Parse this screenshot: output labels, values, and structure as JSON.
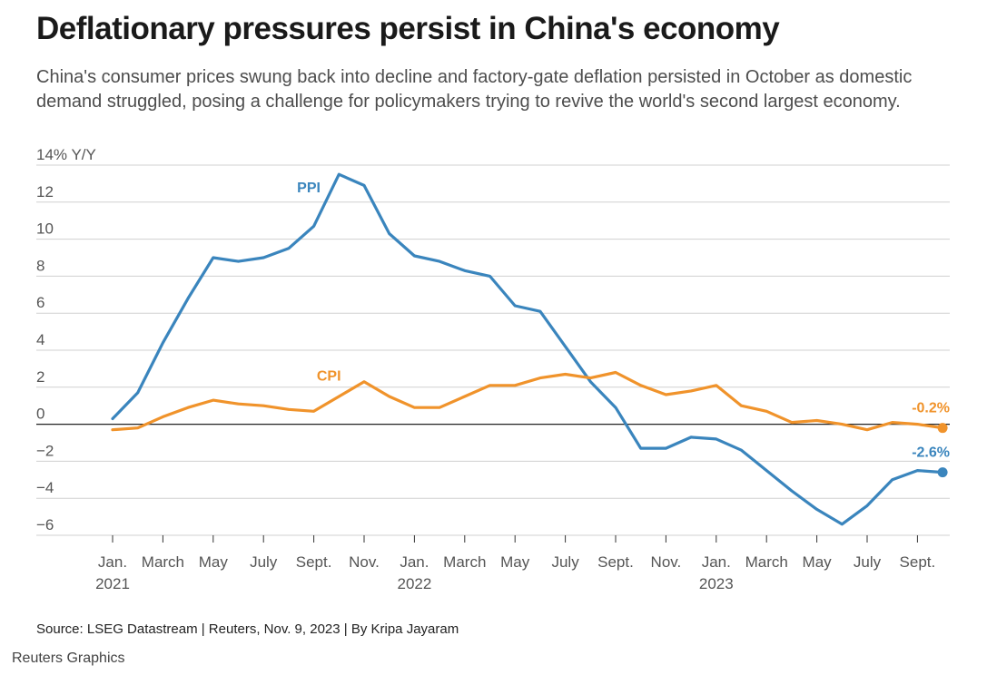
{
  "title": "Deflationary pressures persist in China's economy",
  "subtitle": "China's consumer prices swung back into decline and factory-gate deflation persisted in October as domestic demand struggled, posing a challenge for policymakers trying to revive the world's second largest economy.",
  "source": "Source: LSEG Datastream | Reuters, Nov. 9, 2023 | By Kripa Jayaram",
  "credit": "Reuters Graphics",
  "colors": {
    "ppi": "#3a85bd",
    "cpi": "#f0932b",
    "grid": "#d0d0d0",
    "zero": "#222222"
  },
  "chart_data": {
    "type": "line",
    "title": "Deflationary pressures persist in China's economy",
    "ylabel": "% Y/Y",
    "ylim": [
      -6,
      14
    ],
    "yticks": [
      -6,
      -4,
      -2,
      0,
      2,
      4,
      6,
      8,
      10,
      12,
      14
    ],
    "ytick_labels": [
      "−6",
      "−4",
      "−2",
      "0",
      "2",
      "4",
      "6",
      "8",
      "10",
      "12",
      "14% Y/Y"
    ],
    "x": [
      "2021-01",
      "2021-02",
      "2021-03",
      "2021-04",
      "2021-05",
      "2021-06",
      "2021-07",
      "2021-08",
      "2021-09",
      "2021-10",
      "2021-11",
      "2021-12",
      "2022-01",
      "2022-02",
      "2022-03",
      "2022-04",
      "2022-05",
      "2022-06",
      "2022-07",
      "2022-08",
      "2022-09",
      "2022-10",
      "2022-11",
      "2022-12",
      "2023-01",
      "2023-02",
      "2023-03",
      "2023-04",
      "2023-05",
      "2023-06",
      "2023-07",
      "2023-08",
      "2023-09",
      "2023-10"
    ],
    "xtick_labels": [
      {
        "i": 0,
        "line1": "Jan.",
        "line2": "2021"
      },
      {
        "i": 2,
        "line1": "March",
        "line2": ""
      },
      {
        "i": 4,
        "line1": "May",
        "line2": ""
      },
      {
        "i": 6,
        "line1": "July",
        "line2": ""
      },
      {
        "i": 8,
        "line1": "Sept.",
        "line2": ""
      },
      {
        "i": 10,
        "line1": "Nov.",
        "line2": ""
      },
      {
        "i": 12,
        "line1": "Jan.",
        "line2": "2022"
      },
      {
        "i": 14,
        "line1": "March",
        "line2": ""
      },
      {
        "i": 16,
        "line1": "May",
        "line2": ""
      },
      {
        "i": 18,
        "line1": "July",
        "line2": ""
      },
      {
        "i": 20,
        "line1": "Sept.",
        "line2": ""
      },
      {
        "i": 22,
        "line1": "Nov.",
        "line2": ""
      },
      {
        "i": 24,
        "line1": "Jan.",
        "line2": "2023"
      },
      {
        "i": 26,
        "line1": "March",
        "line2": ""
      },
      {
        "i": 28,
        "line1": "May",
        "line2": ""
      },
      {
        "i": 30,
        "line1": "July",
        "line2": ""
      },
      {
        "i": 32,
        "line1": "Sept.",
        "line2": ""
      }
    ],
    "series": [
      {
        "name": "PPI",
        "label": "PPI",
        "key": "ppi",
        "values": [
          0.3,
          1.7,
          4.4,
          6.8,
          9.0,
          8.8,
          9.0,
          9.5,
          10.7,
          13.5,
          12.9,
          10.3,
          9.1,
          8.8,
          8.3,
          8.0,
          6.4,
          6.1,
          4.2,
          2.3,
          0.9,
          -1.3,
          -1.3,
          -0.7,
          -0.8,
          -1.4,
          -2.5,
          -3.6,
          -4.6,
          -5.4,
          -4.4,
          -3.0,
          -2.5,
          -2.6
        ],
        "end_label": "-2.6%"
      },
      {
        "name": "CPI",
        "label": "CPI",
        "key": "cpi",
        "values": [
          -0.3,
          -0.2,
          0.4,
          0.9,
          1.3,
          1.1,
          1.0,
          0.8,
          0.7,
          1.5,
          2.3,
          1.5,
          0.9,
          0.9,
          1.5,
          2.1,
          2.1,
          2.5,
          2.7,
          2.5,
          2.8,
          2.1,
          1.6,
          1.8,
          2.1,
          1.0,
          0.7,
          0.1,
          0.2,
          0.0,
          -0.3,
          0.1,
          0.0,
          -0.2
        ],
        "end_label": "-0.2%"
      }
    ]
  }
}
